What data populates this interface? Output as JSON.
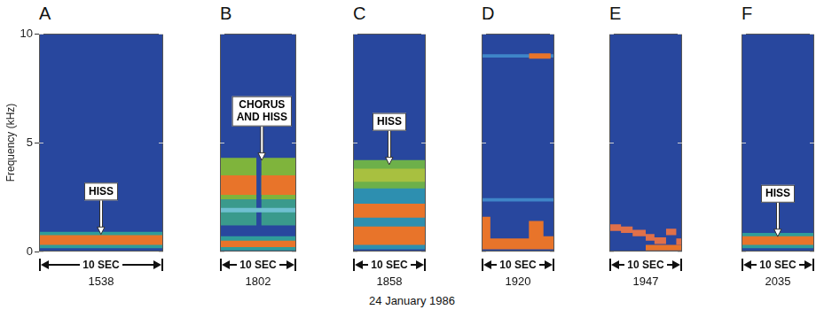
{
  "caption": "24 January 1986",
  "chart_data": [
    {
      "type": "spectrogram",
      "title": "A",
      "time": "1538",
      "x_label": "10 SEC",
      "y_label": "Frequency (kHz)",
      "xlim": [
        0,
        10
      ],
      "ylim": [
        0,
        10
      ],
      "yticks": [
        0,
        5,
        10
      ],
      "tick_labels": "y",
      "bands": [
        {
          "t": [
            0,
            10
          ],
          "low": [
            0.15,
            0.15
          ],
          "high": [
            0.9,
            0.9
          ],
          "color": "#2f9c9a"
        },
        {
          "t": [
            0,
            10
          ],
          "low": [
            0.3,
            0.3
          ],
          "high": [
            0.75,
            0.75
          ],
          "color": "#e8742a"
        }
      ],
      "annotations": [
        {
          "text": "HISS",
          "x": 5,
          "y": 0.8
        }
      ]
    },
    {
      "type": "spectrogram",
      "title": "B",
      "time": "1802",
      "x_label": "10 SEC",
      "xlim": [
        0,
        10
      ],
      "ylim": [
        0,
        10
      ],
      "yticks": [
        0,
        5,
        10
      ],
      "tick_labels": false,
      "bands": [
        {
          "t": [
            0,
            10
          ],
          "low": [
            0.05,
            0.05
          ],
          "high": [
            0.7,
            0.7
          ],
          "color": "#2f9c9a"
        },
        {
          "t": [
            0,
            10
          ],
          "low": [
            0.2,
            0.2
          ],
          "high": [
            0.5,
            0.5
          ],
          "color": "#e8742a"
        },
        {
          "t": [
            0,
            4.8
          ],
          "low": [
            1.2,
            1.2
          ],
          "high": [
            2.5,
            2.5
          ],
          "color": "#3a9a8c"
        },
        {
          "t": [
            5.4,
            10
          ],
          "low": [
            1.2,
            1.2
          ],
          "high": [
            2.5,
            2.5
          ],
          "color": "#3a9a8c"
        },
        {
          "t": [
            0,
            10
          ],
          "low": [
            1.8,
            1.8
          ],
          "high": [
            2.0,
            2.0
          ],
          "color": "#6fc0d0"
        },
        {
          "t": [
            0,
            4.8
          ],
          "low": [
            2.4,
            2.4
          ],
          "high": [
            4.3,
            4.3
          ],
          "color": "#7fb43c"
        },
        {
          "t": [
            5.4,
            10
          ],
          "low": [
            2.4,
            2.4
          ],
          "high": [
            4.3,
            4.3
          ],
          "color": "#7fb43c"
        },
        {
          "t": [
            0,
            4.8
          ],
          "low": [
            2.6,
            2.6
          ],
          "high": [
            3.5,
            3.5
          ],
          "color": "#e8742a"
        },
        {
          "t": [
            5.4,
            10
          ],
          "low": [
            2.6,
            2.6
          ],
          "high": [
            3.5,
            3.5
          ],
          "color": "#e8742a"
        }
      ],
      "annotations": [
        {
          "text": "CHORUS AND HISS",
          "x": 5.5,
          "y": 4.2
        }
      ]
    },
    {
      "type": "spectrogram",
      "title": "C",
      "time": "1858",
      "x_label": "10 SEC",
      "xlim": [
        0,
        10
      ],
      "ylim": [
        0,
        10
      ],
      "yticks": [
        0,
        5,
        10
      ],
      "tick_labels": false,
      "bands": [
        {
          "t": [
            0,
            10
          ],
          "low": [
            0.1,
            0.1
          ],
          "high": [
            3.0,
            3.0
          ],
          "color": "#2d8fb0"
        },
        {
          "t": [
            0,
            10
          ],
          "low": [
            2.9,
            2.9
          ],
          "high": [
            4.2,
            4.2
          ],
          "color": "#6db04a"
        },
        {
          "t": [
            0,
            10
          ],
          "low": [
            3.2,
            3.2
          ],
          "high": [
            3.8,
            3.8
          ],
          "color": "#a8c040"
        },
        {
          "t": [
            0,
            10
          ],
          "low": [
            1.55,
            1.55
          ],
          "high": [
            2.2,
            2.2
          ],
          "color": "#e8742a"
        },
        {
          "t": [
            0,
            10
          ],
          "low": [
            0.3,
            0.3
          ],
          "high": [
            1.15,
            1.15
          ],
          "color": "#e8742a"
        }
      ],
      "annotations": [
        {
          "text": "HISS",
          "x": 5,
          "y": 4.0
        }
      ]
    },
    {
      "type": "spectrogram",
      "title": "D",
      "time": "1920",
      "x_label": "10 SEC",
      "xlim": [
        0,
        10
      ],
      "ylim": [
        0,
        10
      ],
      "yticks": [
        0,
        5,
        10
      ],
      "tick_labels": false,
      "bands": [
        {
          "t": [
            0,
            10
          ],
          "low": [
            2.3,
            2.3
          ],
          "high": [
            2.45,
            2.45
          ],
          "color": "#3f86c8"
        },
        {
          "t": [
            0,
            10
          ],
          "low": [
            8.9,
            8.9
          ],
          "high": [
            9.05,
            9.05
          ],
          "color": "#3f86c8"
        },
        {
          "t": [
            6.5,
            9.5
          ],
          "low": [
            8.85,
            8.85
          ],
          "high": [
            9.1,
            9.1
          ],
          "color": "#e8742a"
        },
        {
          "t": [
            0,
            1.2,
            1.2,
            6.5,
            6.5,
            8.5,
            8.5,
            10
          ],
          "low": [
            0.1,
            0.1,
            0.1,
            0.1,
            0.1,
            0.1,
            0.1,
            0.1
          ],
          "high": [
            1.6,
            1.6,
            0.6,
            0.6,
            1.4,
            1.4,
            0.7,
            0.7
          ],
          "color": "#e8742a"
        }
      ],
      "annotations": []
    },
    {
      "type": "spectrogram",
      "title": "E",
      "time": "1947",
      "x_label": "10 SEC",
      "xlim": [
        0,
        10
      ],
      "ylim": [
        0,
        10
      ],
      "yticks": [
        0,
        5,
        10
      ],
      "tick_labels": false,
      "bands": [
        {
          "t": [
            5,
            10
          ],
          "low": [
            0.05,
            0.05
          ],
          "high": [
            0.3,
            0.3
          ],
          "color": "#e8742a"
        },
        {
          "t": [
            0,
            1.6,
            1.6,
            3.2,
            3.2,
            5,
            5,
            6.2,
            6.2,
            7.8,
            7.8,
            9.2,
            9.2,
            10
          ],
          "low": [
            0.95,
            0.95,
            0.85,
            0.85,
            0.7,
            0.7,
            0.5,
            0.5,
            0.35,
            0.35,
            0.75,
            0.75,
            0.3,
            0.3
          ],
          "high": [
            1.25,
            1.25,
            1.15,
            1.15,
            1.0,
            1.0,
            0.8,
            0.8,
            0.65,
            0.65,
            1.05,
            1.05,
            0.6,
            0.6
          ],
          "color": "#e0704a"
        }
      ],
      "annotations": []
    },
    {
      "type": "spectrogram",
      "title": "F",
      "time": "2035",
      "x_label": "10 SEC",
      "xlim": [
        0,
        10
      ],
      "ylim": [
        0,
        10
      ],
      "yticks": [
        0,
        5,
        10
      ],
      "tick_labels": false,
      "bands": [
        {
          "t": [
            0,
            10
          ],
          "low": [
            0.15,
            0.15
          ],
          "high": [
            0.85,
            0.85
          ],
          "color": "#2f9c9a"
        },
        {
          "t": [
            0,
            10
          ],
          "low": [
            0.3,
            0.3
          ],
          "high": [
            0.7,
            0.7
          ],
          "color": "#e8742a"
        }
      ],
      "annotations": [
        {
          "text": "HISS",
          "x": 5,
          "y": 0.7
        }
      ]
    }
  ]
}
